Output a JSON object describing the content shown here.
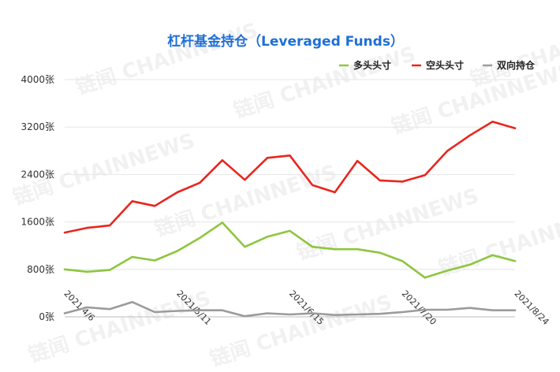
{
  "watermark": "链闻 CHAINNEWS",
  "chart_data": {
    "type": "line",
    "title": "杠杆基金持仓（Leveraged Funds）",
    "title_color": "#1f6fd6",
    "ylim": [
      0,
      4000
    ],
    "y_ticks": [
      0,
      800,
      1600,
      2400,
      3200,
      4000
    ],
    "y_tick_labels": [
      "0张",
      "800张",
      "1600张",
      "2400张",
      "3200张",
      "4000张"
    ],
    "x_tick_labels": [
      {
        "index": 0,
        "label": "2021/4/6"
      },
      {
        "index": 5,
        "label": "2021/5/11"
      },
      {
        "index": 10,
        "label": "2021/6/15"
      },
      {
        "index": 15,
        "label": "2021/7/20"
      },
      {
        "index": 20,
        "label": "2021/8/24"
      }
    ],
    "x": [
      "2021/4/6",
      "2021/4/13",
      "2021/4/20",
      "2021/4/27",
      "2021/5/4",
      "2021/5/11",
      "2021/5/18",
      "2021/5/25",
      "2021/6/1",
      "2021/6/8",
      "2021/6/15",
      "2021/6/22",
      "2021/6/29",
      "2021/7/6",
      "2021/7/13",
      "2021/7/20",
      "2021/7/27",
      "2021/8/3",
      "2021/8/10",
      "2021/8/17",
      "2021/8/24"
    ],
    "legend_position": "top-right",
    "series": [
      {
        "name": "多头头寸",
        "color": "#8dc63f",
        "values": [
          800,
          760,
          790,
          1010,
          950,
          1110,
          1330,
          1590,
          1180,
          1350,
          1450,
          1180,
          1140,
          1140,
          1080,
          940,
          660,
          780,
          880,
          1040,
          940
        ]
      },
      {
        "name": "空头头寸",
        "color": "#e8261e",
        "values": [
          1420,
          1500,
          1540,
          1950,
          1870,
          2100,
          2260,
          2640,
          2310,
          2680,
          2720,
          2220,
          2100,
          2630,
          2300,
          2280,
          2390,
          2800,
          3060,
          3290,
          3180
        ]
      },
      {
        "name": "双向持仓",
        "color": "#9b9b9b",
        "values": [
          60,
          160,
          130,
          250,
          80,
          100,
          110,
          110,
          10,
          60,
          40,
          60,
          30,
          40,
          50,
          80,
          120,
          120,
          150,
          110,
          110
        ]
      }
    ]
  }
}
